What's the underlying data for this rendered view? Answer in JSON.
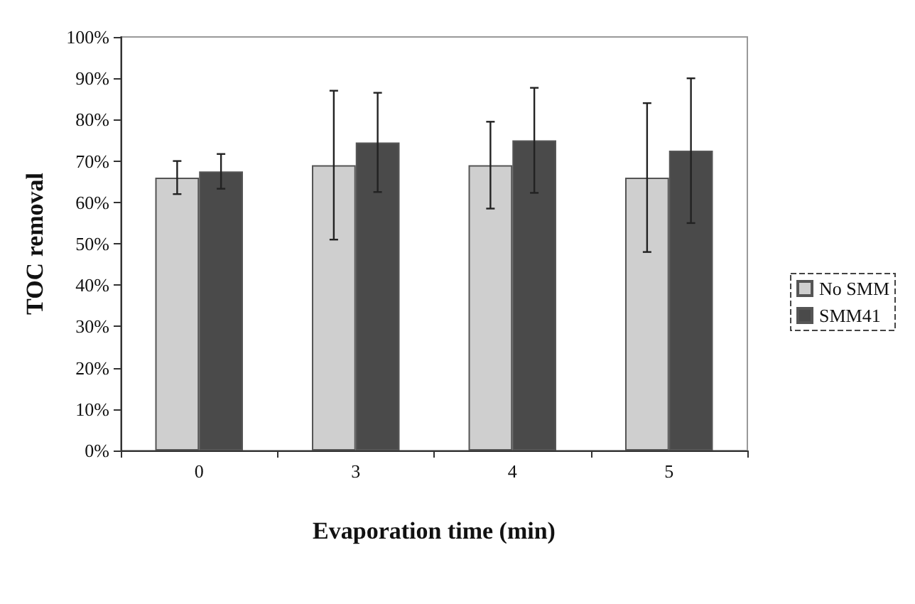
{
  "chart_data": {
    "type": "bar",
    "xlabel": "Evaporation time (min)",
    "ylabel": "TOC removal",
    "categories": [
      "0",
      "3",
      "4",
      "5"
    ],
    "series": [
      {
        "name": "No SMM",
        "color": "#cfcfcf",
        "values": [
          66,
          69,
          69,
          66
        ],
        "errors": [
          4,
          18,
          10.5,
          18
        ]
      },
      {
        "name": "SMM41",
        "color": "#4a4a4a",
        "values": [
          67.5,
          74.5,
          75,
          72.5
        ],
        "errors": [
          4.2,
          12,
          12.7,
          17.5
        ]
      }
    ],
    "ylim": [
      0,
      100
    ],
    "yticks": [
      {
        "value": 0,
        "label": "0%"
      },
      {
        "value": 10,
        "label": "10%"
      },
      {
        "value": 20,
        "label": "20%"
      },
      {
        "value": 30,
        "label": "30%"
      },
      {
        "value": 40,
        "label": "40%"
      },
      {
        "value": 50,
        "label": "50%"
      },
      {
        "value": 60,
        "label": "60%"
      },
      {
        "value": 70,
        "label": "70%"
      },
      {
        "value": 80,
        "label": "80%"
      },
      {
        "value": 90,
        "label": "90%"
      },
      {
        "value": 100,
        "label": "100%"
      }
    ],
    "grid": false,
    "legend": "right"
  }
}
